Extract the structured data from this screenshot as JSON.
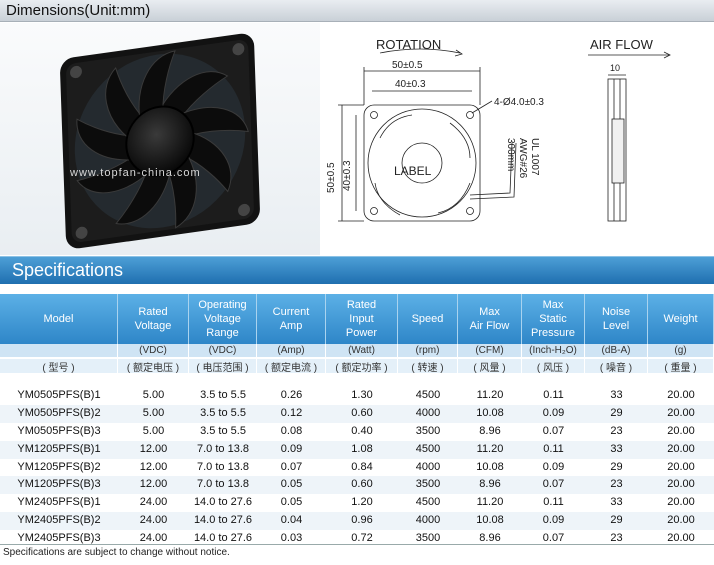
{
  "dimensions_title": "Dimensions(Unit:mm)",
  "diagram": {
    "rotation_label": "ROTATION",
    "airflow_label": "AIR FLOW",
    "dim_outer": "50±0.5",
    "dim_inner": "40±0.3",
    "dim_holes": "4-Ø4.0±0.3",
    "dim_side_outer": "50±0.5",
    "dim_side_inner": "40±0.3",
    "thickness": "10",
    "label_text": "LABEL",
    "wire_line1": "UL 1007",
    "wire_line2": "AWG#26",
    "wire_line3": "300mm",
    "watermark": "www.topfan-china.com"
  },
  "spec_title": "Specifications",
  "columns": [
    {
      "name": "Model",
      "unit": "",
      "cn": "( 型号 )"
    },
    {
      "name": "Rated\nVoltage",
      "unit": "(VDC)",
      "cn": "( 额定电压 )"
    },
    {
      "name": "Operating\nVoltage\nRange",
      "unit": "(VDC)",
      "cn": "( 电压范围 )"
    },
    {
      "name": "Current\nAmp",
      "unit": "(Amp)",
      "cn": "( 额定电流 )"
    },
    {
      "name": "Rated\nInput\nPower",
      "unit": "(Watt)",
      "cn": "( 额定功率 )"
    },
    {
      "name": "Speed",
      "unit": "(rpm)",
      "cn": "( 转速 )"
    },
    {
      "name": "Max\nAir Flow",
      "unit": "(CFM)",
      "cn": "( 风量 )"
    },
    {
      "name": "Max\nStatic\nPressure",
      "unit": "(Inch-H₂O)",
      "cn": "( 风压 )"
    },
    {
      "name": "Noise\nLevel",
      "unit": "(dB-A)",
      "cn": "( 噪音 )"
    },
    {
      "name": "Weight",
      "unit": "(g)",
      "cn": "( 重量 )"
    }
  ],
  "rows": [
    [
      "YM0505PFS(B)1",
      "5.00",
      "3.5 to 5.5",
      "0.26",
      "1.30",
      "4500",
      "11.20",
      "0.11",
      "33",
      "20.00"
    ],
    [
      "YM0505PFS(B)2",
      "5.00",
      "3.5 to 5.5",
      "0.12",
      "0.60",
      "4000",
      "10.08",
      "0.09",
      "29",
      "20.00"
    ],
    [
      "YM0505PFS(B)3",
      "5.00",
      "3.5 to 5.5",
      "0.08",
      "0.40",
      "3500",
      "8.96",
      "0.07",
      "23",
      "20.00"
    ],
    [
      "YM1205PFS(B)1",
      "12.00",
      "7.0 to 13.8",
      "0.09",
      "1.08",
      "4500",
      "11.20",
      "0.11",
      "33",
      "20.00"
    ],
    [
      "YM1205PFS(B)2",
      "12.00",
      "7.0 to 13.8",
      "0.07",
      "0.84",
      "4000",
      "10.08",
      "0.09",
      "29",
      "20.00"
    ],
    [
      "YM1205PFS(B)3",
      "12.00",
      "7.0 to 13.8",
      "0.05",
      "0.60",
      "3500",
      "8.96",
      "0.07",
      "23",
      "20.00"
    ],
    [
      "YM2405PFS(B)1",
      "24.00",
      "14.0 to 27.6",
      "0.05",
      "1.20",
      "4500",
      "11.20",
      "0.11",
      "33",
      "20.00"
    ],
    [
      "YM2405PFS(B)2",
      "24.00",
      "14.0 to 27.6",
      "0.04",
      "0.96",
      "4000",
      "10.08",
      "0.09",
      "29",
      "20.00"
    ],
    [
      "YM2405PFS(B)3",
      "24.00",
      "14.0 to 27.6",
      "0.03",
      "0.72",
      "3500",
      "8.96",
      "0.07",
      "23",
      "20.00"
    ]
  ],
  "note": "Specifications are subject to change without notice."
}
